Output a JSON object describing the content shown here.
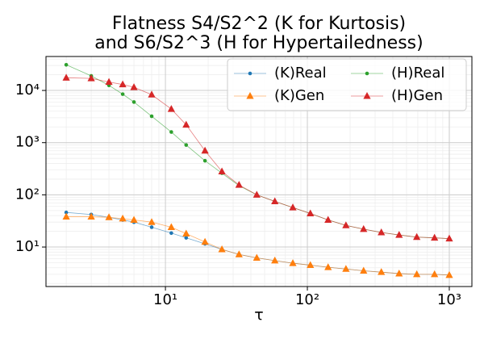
{
  "chart_data": {
    "type": "line",
    "title": [
      "Flatness S4/S2^2 (K for Kurtosis)",
      "and S6/S2^3 (H for Hypertailedness)"
    ],
    "x_label": "τ",
    "x": [
      2,
      3,
      4,
      5,
      6,
      8,
      11,
      14,
      19,
      25,
      33,
      44,
      59,
      79,
      105,
      140,
      187,
      249,
      332,
      443,
      590,
      787,
      1000
    ],
    "series": [
      {
        "name": "(K)Real",
        "color": "#1f77b4",
        "marker": "circle",
        "values": [
          46,
          42,
          37,
          33,
          30,
          24,
          18.5,
          15,
          11.5,
          9,
          7.2,
          6.2,
          5.5,
          4.9,
          4.5,
          4.1,
          3.8,
          3.5,
          3.3,
          3.1,
          3.0,
          3.0,
          2.9
        ]
      },
      {
        "name": "(K)Gen",
        "color": "#ff7f0e",
        "marker": "triangle",
        "values": [
          38,
          38,
          37,
          35,
          33,
          30,
          24,
          18,
          12.5,
          9,
          7.2,
          6.2,
          5.5,
          4.9,
          4.5,
          4.1,
          3.8,
          3.5,
          3.3,
          3.1,
          3.0,
          3.0,
          2.9
        ]
      },
      {
        "name": "(H)Real",
        "color": "#2ca02c",
        "marker": "circle",
        "values": [
          31000,
          19000,
          12500,
          8500,
          6000,
          3200,
          1600,
          900,
          450,
          260,
          150,
          100,
          75,
          57,
          44,
          33,
          26,
          22,
          19,
          17,
          15.5,
          15,
          14.5
        ]
      },
      {
        "name": "(H)Gen",
        "color": "#d62728",
        "marker": "triangle",
        "values": [
          17500,
          17000,
          14500,
          13000,
          11500,
          8300,
          4400,
          2200,
          700,
          280,
          155,
          100,
          75,
          57,
          44,
          33,
          26,
          22,
          19,
          17,
          15.5,
          15,
          14.5
        ]
      }
    ],
    "xscale": "log",
    "yscale": "log",
    "xlim": [
      1.44,
      1443
    ],
    "ylim": [
      1.75,
      44700
    ],
    "xticks": [
      {
        "value": 10,
        "label": "10¹"
      },
      {
        "value": 100,
        "label": "10²"
      },
      {
        "value": 1000,
        "label": "10³"
      }
    ],
    "yticks": [
      {
        "value": 10,
        "label": "10¹"
      },
      {
        "value": 100,
        "label": "10²"
      },
      {
        "value": 1000,
        "label": "10³"
      },
      {
        "value": 10000,
        "label": "10⁴"
      }
    ],
    "grid": true,
    "minor_grid": true,
    "legend": "upper right",
    "legend_columns": 2
  }
}
